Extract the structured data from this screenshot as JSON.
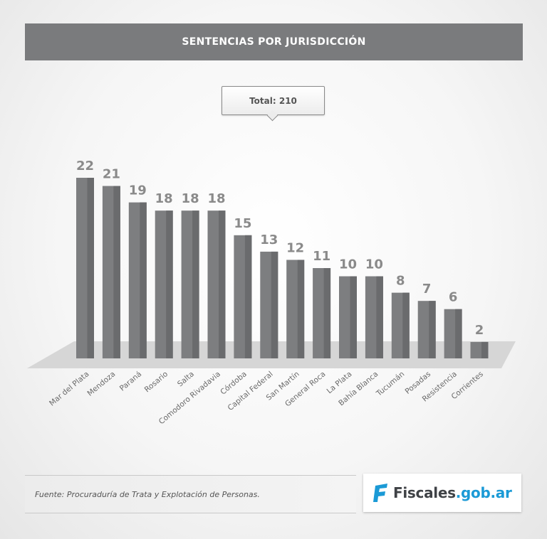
{
  "chart_data": {
    "type": "bar",
    "title": "SENTENCIAS POR JURISDICCIÓN",
    "total_label": "Total: 210",
    "categories": [
      "Mar del Plata",
      "Mendoza",
      "Paraná",
      "Rosario",
      "Salta",
      "Comodoro Rivadavia",
      "Córdoba",
      "Capital Federal",
      "San Martín",
      "General Roca",
      "La Plata",
      "Bahía Blanca",
      "Tucumán",
      "Posadas",
      "Resistencia",
      "Corrientes"
    ],
    "values": [
      22,
      21,
      19,
      18,
      18,
      18,
      15,
      13,
      12,
      11,
      10,
      10,
      8,
      7,
      6,
      2
    ],
    "ylim": [
      0,
      22
    ],
    "xlabel": "",
    "ylabel": "",
    "colors": {
      "bar": "#7d7e80",
      "bar_dark": "#6a6b6d",
      "label": "#8a8a8a",
      "floor": "#d4d4d4"
    }
  },
  "source": "Fuente: Procuraduría de Trata y Explotación de Personas.",
  "logo": {
    "name": "Fiscales",
    "domain": ".gob.ar",
    "accent": "#1b9ad6"
  }
}
